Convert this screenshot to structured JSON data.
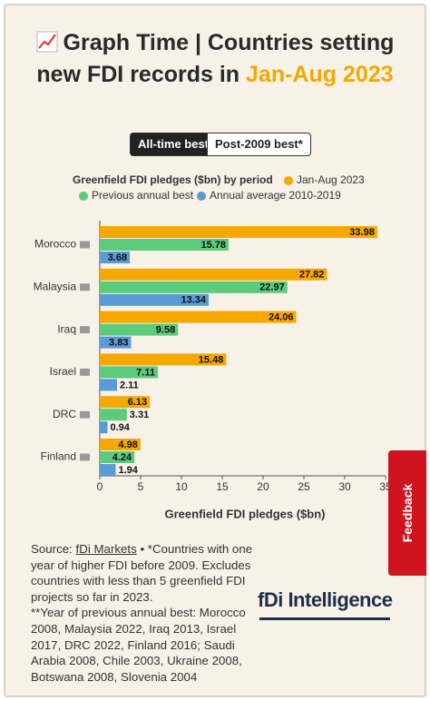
{
  "header": {
    "title": "Graph Time | Countries setting new FDI records in ",
    "title_highlight": "Jan-Aug 2023"
  },
  "buttons": [
    "All-time best",
    "Post-2009 best*"
  ],
  "chart_data": {
    "type": "hbar",
    "legend_title": "Greenfield FDI pledges ($bn) by period",
    "categories": [
      "Morocco",
      "Malaysia",
      "Iraq",
      "Israel",
      "DRC",
      "Finland"
    ],
    "series": [
      {
        "name": "Jan-Aug 2023",
        "color": "#f5a800",
        "values": [
          33.98,
          27.82,
          24.06,
          15.48,
          6.13,
          4.98
        ]
      },
      {
        "name": "Previous annual best",
        "color": "#5ccb7c",
        "values": [
          15.78,
          22.97,
          9.58,
          7.11,
          3.31,
          4.24
        ]
      },
      {
        "name": "Annual average 2010-2019",
        "color": "#5b9bd5",
        "values": [
          3.68,
          13.34,
          3.83,
          2.11,
          0.94,
          1.94
        ]
      }
    ],
    "xlim": [
      0,
      35
    ],
    "xticks": [
      0,
      5,
      10,
      15,
      20,
      25,
      30,
      35
    ],
    "xlabel": "Greenfield FDI pledges ($bn)"
  },
  "source": {
    "prefix": "Source: ",
    "link": "fDi Markets",
    "text": " • *Countries with one year of higher FDI before 2009. Excludes countries with less than 5 greenfield FDI projects so far in 2023.",
    "note": "**Year of previous annual best: Morocco 2008, Malaysia 2022, Iraq 2013, Israel 2017, DRC 2022, Finland 2016; Saudi Arabia 2008, Chile 2003, Ukraine 2008, Botswana 2008, Slovenia 2004"
  },
  "logo": "fDi Intelligence",
  "feedback": "Feedback"
}
